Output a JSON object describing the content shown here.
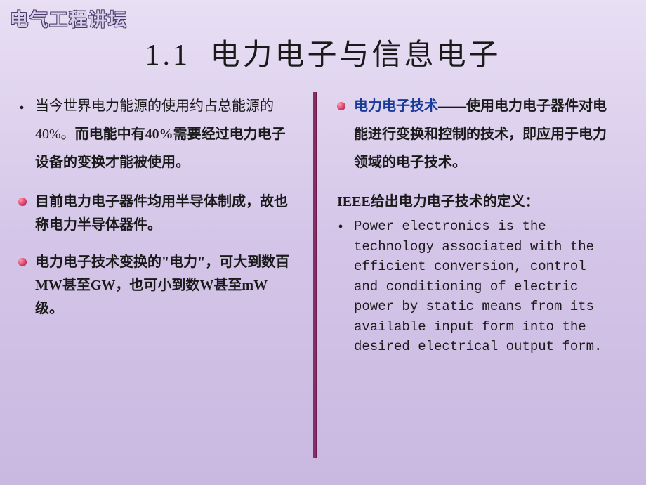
{
  "header": {
    "label": "电气工程讲坛"
  },
  "title": "1.1  电力电子与信息电子",
  "left": {
    "items": [
      {
        "marker": "dot",
        "prefix": "当今世界电力能源的使用约占总能源的40%。",
        "bold_suffix": "而电能中有40%需要经过电力电子设备的变换才能被使用。"
      },
      {
        "marker": "sphere",
        "text": "目前电力电子器件均用半导体制成，故也称电力半导体器件。"
      },
      {
        "marker": "sphere",
        "text": "电力电子技术变换的\"电力\"，可大到数百MW甚至GW，也可小到数W甚至mW级。"
      }
    ]
  },
  "right": {
    "item1": {
      "blue": "电力电子技术",
      "dash": "——",
      "rest": "使用电力电子器件对电能进行变换和控制的技术，即应用于电力领域的电子技术。"
    },
    "ieee_label": "IEEE给出电力电子技术的定义：",
    "english": "Power electronics is the technology associated with the efficient conversion, control and conditioning of electric power by static means from its available input form into the desired electrical output form."
  },
  "style": {
    "background_gradient": [
      "#e8dff4",
      "#d4c5e8",
      "#c9b8e0"
    ],
    "divider_color": "#8a2b6a",
    "title_fontsize": 42,
    "body_fontsize": 20,
    "blue_color": "#1a3a9a",
    "sphere_gradient": [
      "#ff9aa8",
      "#d63a6a",
      "#8a1a4a"
    ]
  }
}
